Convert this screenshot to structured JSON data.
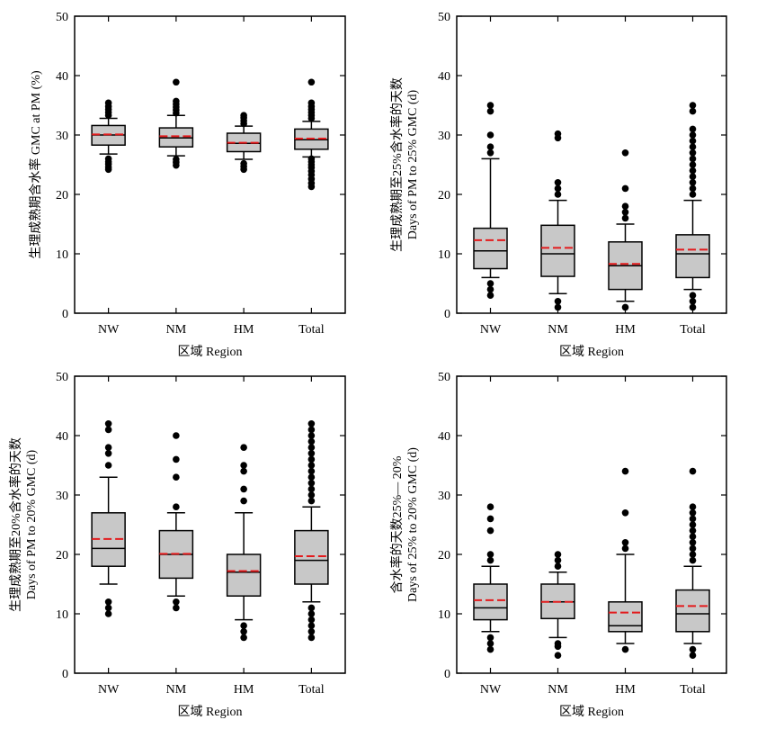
{
  "chart_data": [
    {
      "type": "box",
      "xlabel": "区域 Region",
      "ylabel": [
        "生理成熟期含水率 GMC at PM (%)"
      ],
      "ylim": [
        0,
        50
      ],
      "yticks": [
        0,
        10,
        20,
        30,
        40,
        50
      ],
      "categories": [
        "NW",
        "NM",
        "HM",
        "Total"
      ],
      "grid": false,
      "boxes": [
        {
          "q1": 28.3,
          "median": 30.0,
          "q3": 31.6,
          "mean": 30.1,
          "whisker_low": 26.8,
          "whisker_high": 32.8,
          "outliers": [
            24.2,
            24.6,
            25.1,
            25.5,
            26.0,
            33.3,
            33.8,
            34.3,
            34.8,
            35.4
          ]
        },
        {
          "q1": 28.0,
          "median": 29.5,
          "q3": 31.2,
          "mean": 29.8,
          "whisker_low": 26.5,
          "whisker_high": 33.3,
          "outliers": [
            24.9,
            25.4,
            25.9,
            33.7,
            34.2,
            34.7,
            35.2,
            35.7,
            38.9
          ]
        },
        {
          "q1": 27.2,
          "median": 28.6,
          "q3": 30.3,
          "mean": 28.7,
          "whisker_low": 25.9,
          "whisker_high": 31.5,
          "outliers": [
            24.2,
            24.7,
            25.2,
            31.9,
            32.4,
            32.9,
            33.3
          ]
        },
        {
          "q1": 27.6,
          "median": 29.2,
          "q3": 31.0,
          "mean": 29.4,
          "whisker_low": 26.3,
          "whisker_high": 32.3,
          "outliers": [
            21.3,
            21.9,
            22.6,
            23.3,
            23.9,
            24.5,
            25.0,
            25.5,
            26.0,
            32.8,
            33.3,
            33.8,
            34.3,
            34.8,
            35.4,
            38.9
          ]
        }
      ]
    },
    {
      "type": "box",
      "xlabel": "区域 Region",
      "ylabel": [
        "生理成熟期至25%含水率的天数",
        "Days of PM to 25% GMC (d)"
      ],
      "ylim": [
        0,
        50
      ],
      "yticks": [
        0,
        10,
        20,
        30,
        40,
        50
      ],
      "categories": [
        "NW",
        "NM",
        "HM",
        "Total"
      ],
      "grid": false,
      "boxes": [
        {
          "q1": 7.5,
          "median": 10.5,
          "q3": 14.3,
          "mean": 12.3,
          "whisker_low": 6.0,
          "whisker_high": 26.0,
          "outliers": [
            3.0,
            4.0,
            5.0,
            27.0,
            28.0,
            30.0,
            34.0,
            35.0
          ]
        },
        {
          "q1": 6.2,
          "median": 10.0,
          "q3": 14.8,
          "mean": 11.0,
          "whisker_low": 3.3,
          "whisker_high": 19.0,
          "outliers": [
            1.0,
            2.0,
            20.0,
            21.0,
            22.0,
            29.5,
            30.2
          ]
        },
        {
          "q1": 4.0,
          "median": 8.0,
          "q3": 12.0,
          "mean": 8.3,
          "whisker_low": 2.0,
          "whisker_high": 15.0,
          "outliers": [
            1.0,
            16.0,
            17.0,
            18.0,
            21.0,
            27.0
          ]
        },
        {
          "q1": 6.0,
          "median": 10.0,
          "q3": 13.2,
          "mean": 10.7,
          "whisker_low": 4.0,
          "whisker_high": 19.0,
          "outliers": [
            1.0,
            2.0,
            3.0,
            20.0,
            21.0,
            22.0,
            23.0,
            24.0,
            25.0,
            26.0,
            27.0,
            28.0,
            29.0,
            30.0,
            31.0,
            34.0,
            35.0
          ]
        }
      ]
    },
    {
      "type": "box",
      "xlabel": "区域 Region",
      "ylabel": [
        "生理成熟期至20%含水率的天数",
        "Days of PM to 20% GMC (d)"
      ],
      "ylim": [
        0,
        50
      ],
      "yticks": [
        0,
        10,
        20,
        30,
        40,
        50
      ],
      "categories": [
        "NW",
        "NM",
        "HM",
        "Total"
      ],
      "grid": false,
      "boxes": [
        {
          "q1": 18.0,
          "median": 21.0,
          "q3": 27.0,
          "mean": 22.6,
          "whisker_low": 15.0,
          "whisker_high": 33.0,
          "outliers": [
            10.0,
            11.0,
            12.0,
            35.0,
            37.0,
            38.0,
            41.0,
            42.0
          ]
        },
        {
          "q1": 16.0,
          "median": 20.0,
          "q3": 24.0,
          "mean": 20.1,
          "whisker_low": 13.0,
          "whisker_high": 27.0,
          "outliers": [
            11.0,
            12.0,
            28.0,
            33.0,
            36.0,
            40.0
          ]
        },
        {
          "q1": 13.0,
          "median": 17.0,
          "q3": 20.0,
          "mean": 17.2,
          "whisker_low": 9.0,
          "whisker_high": 27.0,
          "outliers": [
            6.0,
            7.0,
            8.0,
            29.0,
            31.0,
            34.0,
            35.0,
            38.0
          ]
        },
        {
          "q1": 15.0,
          "median": 19.0,
          "q3": 24.0,
          "mean": 19.7,
          "whisker_low": 12.0,
          "whisker_high": 28.0,
          "outliers": [
            6,
            7,
            8,
            9,
            10,
            11,
            29,
            30,
            31,
            32,
            33,
            34,
            35,
            36,
            37,
            38,
            39,
            40,
            41,
            42
          ]
        }
      ]
    },
    {
      "type": "box",
      "xlabel": "区域 Region",
      "ylabel": [
        "含水率的天数25%— 20%",
        "Days of 25% to 20% GMC (d)"
      ],
      "ylim": [
        0,
        50
      ],
      "yticks": [
        0,
        10,
        20,
        30,
        40,
        50
      ],
      "categories": [
        "NW",
        "NM",
        "HM",
        "Total"
      ],
      "grid": false,
      "boxes": [
        {
          "q1": 9.0,
          "median": 11.0,
          "q3": 15.0,
          "mean": 12.3,
          "whisker_low": 7.0,
          "whisker_high": 18.0,
          "outliers": [
            4.0,
            5.0,
            6.0,
            19.0,
            20.0,
            24.0,
            26.0,
            28.0
          ]
        },
        {
          "q1": 9.2,
          "median": 12.0,
          "q3": 15.0,
          "mean": 12.0,
          "whisker_low": 6.0,
          "whisker_high": 17.0,
          "outliers": [
            3.0,
            4.5,
            5.0,
            18.0,
            19.0,
            20.0
          ]
        },
        {
          "q1": 7.0,
          "median": 8.0,
          "q3": 12.0,
          "mean": 10.2,
          "whisker_low": 5.0,
          "whisker_high": 20.0,
          "outliers": [
            4.0,
            21.0,
            22.0,
            27.0,
            34.0
          ]
        },
        {
          "q1": 7.0,
          "median": 10.0,
          "q3": 14.0,
          "mean": 11.3,
          "whisker_low": 5.0,
          "whisker_high": 18.0,
          "outliers": [
            3,
            4,
            19,
            20,
            21,
            22,
            23,
            24,
            25,
            26,
            27,
            28,
            34
          ]
        }
      ]
    }
  ],
  "colors": {
    "box_fill": "#c8c8c8",
    "mean_line": "#e31a1c",
    "stroke": "#000000"
  }
}
